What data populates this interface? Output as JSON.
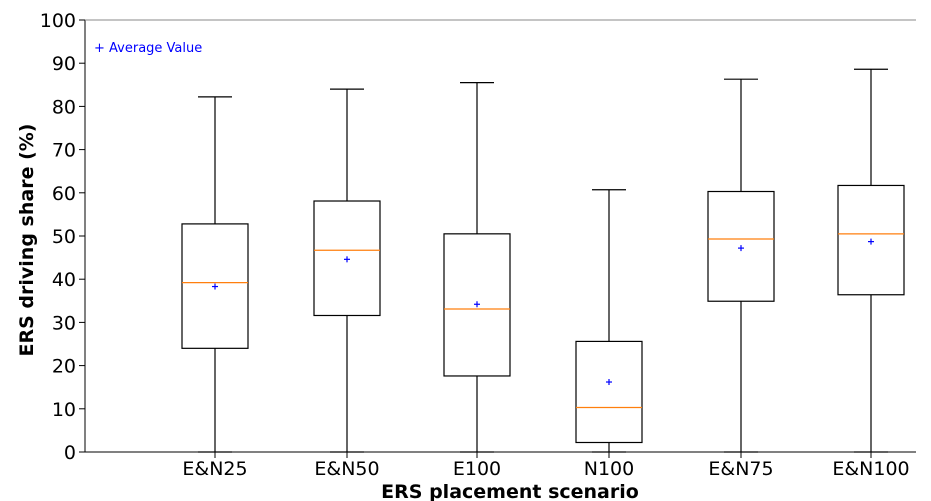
{
  "chart_data": {
    "type": "box",
    "xlabel": "ERS placement scenario",
    "ylabel": "ERS driving share (%)",
    "ylim": [
      0,
      100
    ],
    "yticks": [
      "0",
      "10",
      "20",
      "30",
      "40",
      "50",
      "60",
      "70",
      "80",
      "90",
      "100"
    ],
    "grid": false,
    "annotation": "+ Average Value",
    "categories": [
      "E&N25",
      "E&N50",
      "E100",
      "N100",
      "E&N75",
      "E&N100"
    ],
    "boxes": [
      {
        "category": "E&N25",
        "min": 0,
        "q1": 24.0,
        "median": 39.2,
        "q3": 52.8,
        "max": 82.2,
        "mean": 38.3
      },
      {
        "category": "E&N50",
        "min": 0,
        "q1": 31.6,
        "median": 46.7,
        "q3": 58.1,
        "max": 84.0,
        "mean": 44.6
      },
      {
        "category": "E100",
        "min": 0,
        "q1": 17.6,
        "median": 33.1,
        "q3": 50.5,
        "max": 85.5,
        "mean": 34.2
      },
      {
        "category": "N100",
        "min": 0,
        "q1": 2.2,
        "median": 10.3,
        "q3": 25.6,
        "max": 60.7,
        "mean": 16.2
      },
      {
        "category": "E&N75",
        "min": 0,
        "q1": 34.9,
        "median": 49.3,
        "q3": 60.3,
        "max": 86.3,
        "mean": 47.2
      },
      {
        "category": "E&N100",
        "min": 0,
        "q1": 36.4,
        "median": 50.5,
        "q3": 61.7,
        "max": 88.6,
        "mean": 48.7
      }
    ],
    "colors": {
      "box": "#000000",
      "median": "#ff7f0e",
      "mean": "#0000ff",
      "axis": "#000000"
    }
  }
}
